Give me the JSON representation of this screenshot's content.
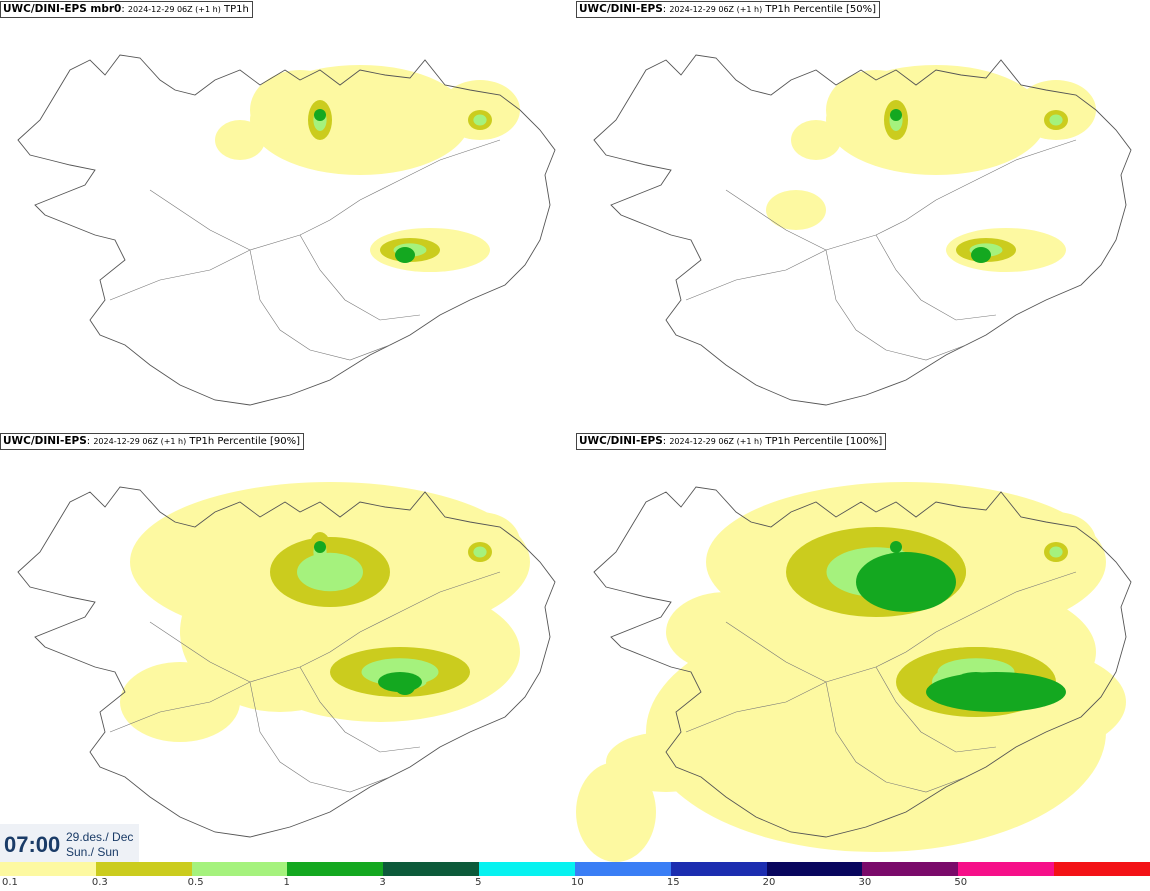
{
  "panels": [
    {
      "model": "UWC/DINI-EPS mbr0",
      "meta": "2024-12-29 06Z (+1 h)",
      "field": "TP1h",
      "level": 1
    },
    {
      "model": "UWC/DINI-EPS",
      "meta": "2024-12-29 06Z (+1 h)",
      "field": "TP1h Percentile [50%]",
      "level": 1.2
    },
    {
      "model": "UWC/DINI-EPS",
      "meta": "2024-12-29 06Z (+1 h)",
      "field": "TP1h Percentile [90%]",
      "level": 2.2
    },
    {
      "model": "UWC/DINI-EPS",
      "meta": "2024-12-29 06Z (+1 h)",
      "field": "TP1h Percentile [100%]",
      "level": 3.2
    }
  ],
  "clock": {
    "time": "07:00",
    "date_line1": "29.des./ Dec",
    "date_line2": "Sun./ Sun"
  },
  "legend": {
    "colors": [
      "#fdf9a1",
      "#cbcc1e",
      "#a5f27d",
      "#14a820",
      "#0c5a3a",
      "#06f2f0",
      "#3a7ef5",
      "#1c2db0",
      "#08065e",
      "#7a0a6a",
      "#f60f89",
      "#f31216"
    ],
    "labels": [
      "0.1",
      "0.3",
      "0.5",
      "1",
      "3",
      "5",
      "10",
      "15",
      "20",
      "30",
      "50"
    ]
  },
  "colors": {
    "outline": "#555555",
    "clock_text": "#1a3b67"
  }
}
